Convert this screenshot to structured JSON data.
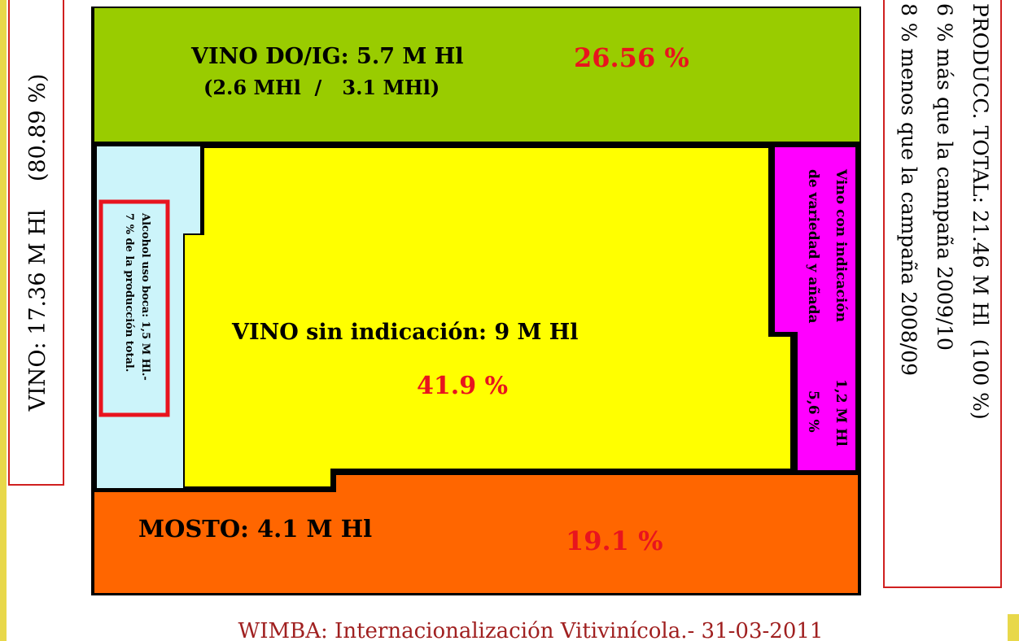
{
  "left_box": {
    "text": "VINO: 17.36 M Hl    (80.89 %)"
  },
  "do_ig": {
    "label": "VINO DO/IG: 5.7 M Hl",
    "detail": "(2.6 MHl  /   3.1 MHl)",
    "percent": "26.56 %"
  },
  "alcohol": {
    "line1": "Alcohol uso boca: 1,5 M Hl.-",
    "line2": "7 % de la producción total."
  },
  "sin_indicacion": {
    "label": "VINO sin indicación: 9 M Hl",
    "percent": "41.9 %"
  },
  "variedad": {
    "line1": "Vino con indicación",
    "line2": "de variedad y añada",
    "amount": "1,2 M Hl",
    "percent": "5,6 %"
  },
  "mosto": {
    "label": "MOSTO: 4.1 M Hl",
    "percent": "19.1 %"
  },
  "right_box": {
    "line1": "PRODUCC. TOTAL: 21.46 M Hl  (100 %)",
    "line2": "6 % más que la campaña 2009/10",
    "line3": "8 % menos que la campaña 2008/09"
  },
  "footer": "WIMBA: Internacionalización Vitivinícola.- 31-03-2011"
}
